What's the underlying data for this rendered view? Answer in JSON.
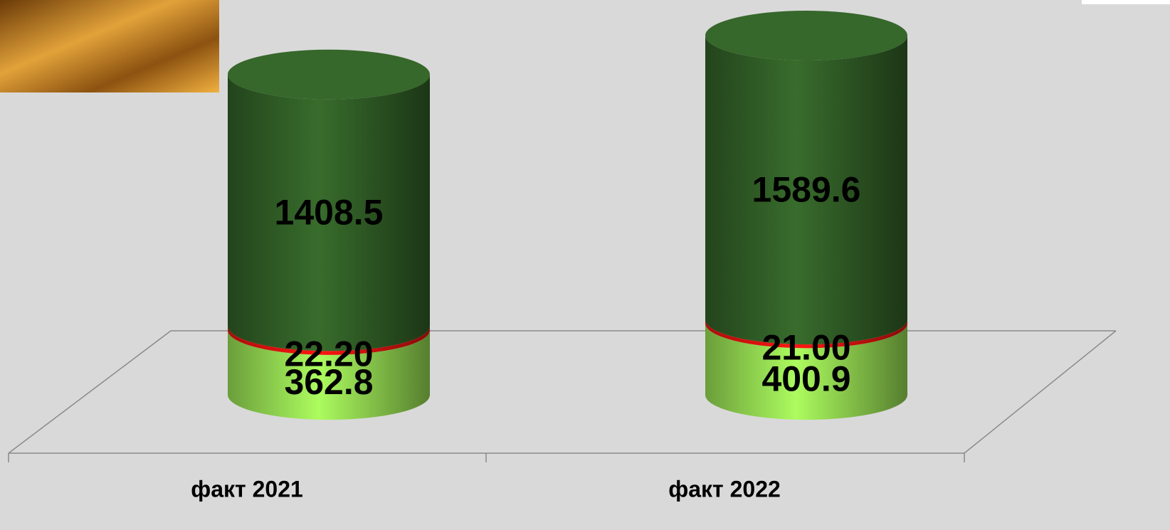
{
  "chart_data": {
    "type": "bar",
    "stacked": true,
    "categories": [
      "факт 2021",
      "факт 2022"
    ],
    "series": [
      {
        "color": "#8fd24f",
        "values": [
          362.8,
          400.9
        ]
      },
      {
        "color": "#e0120e",
        "values": [
          22.2,
          21.0
        ],
        "value_labels": [
          "22.20",
          "21.00"
        ]
      },
      {
        "color": "#2f5a25",
        "values": [
          1408.5,
          1589.6
        ]
      }
    ]
  }
}
